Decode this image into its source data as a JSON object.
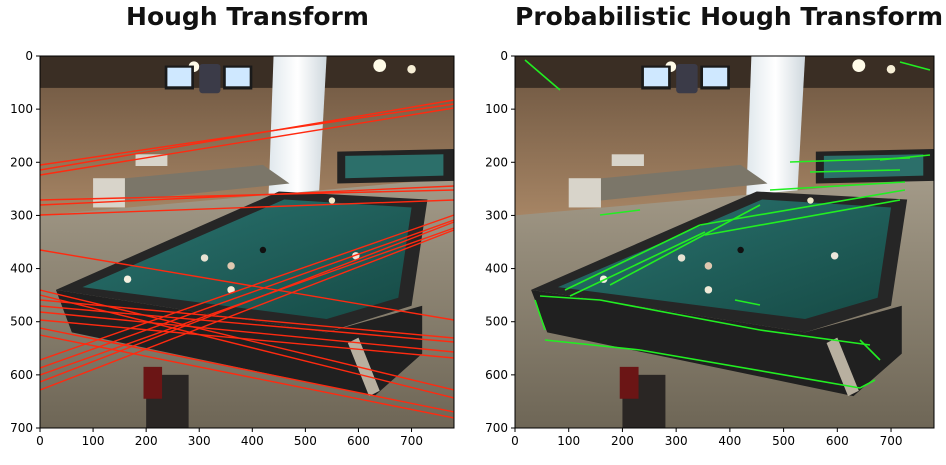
{
  "panels": [
    {
      "title": "Hough Transform",
      "x_ticks": [
        "0",
        "100",
        "200",
        "300",
        "400",
        "500",
        "600",
        "700"
      ],
      "y_ticks": [
        "0",
        "100",
        "200",
        "300",
        "400",
        "500",
        "600",
        "700"
      ],
      "line_color": "#ff2a10"
    },
    {
      "title": "Probabilistic Hough Transform",
      "x_ticks": [
        "0",
        "100",
        "200",
        "300",
        "400",
        "500",
        "600",
        "700"
      ],
      "y_ticks": [
        "0",
        "100",
        "200",
        "300",
        "400",
        "500",
        "600",
        "700"
      ],
      "line_color": "#22ee22"
    }
  ],
  "image_extent": {
    "x": [
      0,
      780
    ],
    "y": [
      700,
      0
    ]
  },
  "colors": {
    "felt": "#1f5c57",
    "wall": "#a98766",
    "floor": "#8c826f",
    "rail": "#242424"
  }
}
